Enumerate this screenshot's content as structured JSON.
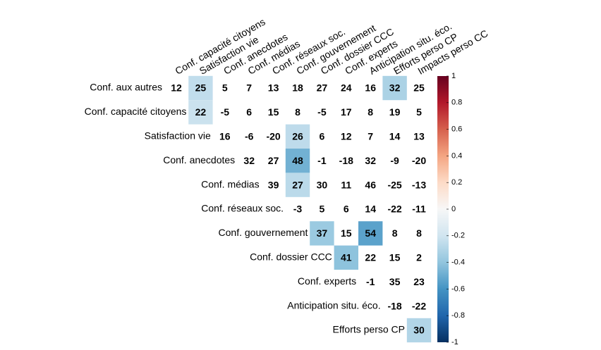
{
  "chart_data": {
    "type": "heatmap",
    "x_labels": [
      "Conf. capacité citoyens",
      "Satisfaction vie",
      "Conf. anecdotes",
      "Conf. médias",
      "Conf. réseaux soc.",
      "Conf. gouvernement",
      "Conf. dossier CCC",
      "Conf. experts",
      "Anticipation situ. éco.",
      "Efforts perso CP",
      "Impacts perso CC"
    ],
    "y_labels": [
      "Conf. aux autres",
      "Conf. capacité citoyens",
      "Satisfaction vie",
      "Conf. anecdotes",
      "Conf. médias",
      "Conf. réseaux soc.",
      "Conf. gouvernement",
      "Conf. dossier CCC",
      "Conf. experts",
      "Anticipation situ. éco.",
      "Efforts perso CP"
    ],
    "values": [
      [
        12,
        25,
        5,
        7,
        13,
        18,
        27,
        24,
        16,
        32,
        25
      ],
      [
        22,
        -5,
        6,
        15,
        8,
        -5,
        17,
        8,
        19,
        5
      ],
      [
        16,
        -6,
        -20,
        26,
        6,
        12,
        7,
        14,
        13
      ],
      [
        32,
        27,
        48,
        -1,
        -18,
        32,
        -9,
        -20
      ],
      [
        39,
        27,
        30,
        11,
        46,
        -25,
        -13
      ],
      [
        -3,
        5,
        6,
        14,
        -22,
        -11
      ],
      [
        37,
        15,
        54,
        8,
        8
      ],
      [
        41,
        22,
        15,
        2
      ],
      [
        -1,
        35,
        23
      ],
      [
        -18,
        -22
      ],
      [
        30
      ]
    ],
    "shaded": [
      [
        0,
        1
      ],
      [
        0,
        9
      ],
      [
        1,
        1
      ],
      [
        2,
        5
      ],
      [
        3,
        5
      ],
      [
        4,
        5
      ],
      [
        6,
        6
      ],
      [
        6,
        8
      ],
      [
        7,
        7
      ],
      [
        10,
        10
      ]
    ],
    "colorbar": {
      "lim": [
        -1,
        1
      ],
      "ticks": [
        1,
        0.8,
        0.6,
        0.4,
        0.2,
        0,
        -0.2,
        -0.4,
        -0.6,
        -0.8,
        -1
      ],
      "colors": [
        "#67001f",
        "#b2182b",
        "#d6604d",
        "#f4a582",
        "#fddbc7",
        "#f7f7f7",
        "#d1e5f0",
        "#92c5de",
        "#4393c3",
        "#2166ac",
        "#053061"
      ]
    }
  }
}
